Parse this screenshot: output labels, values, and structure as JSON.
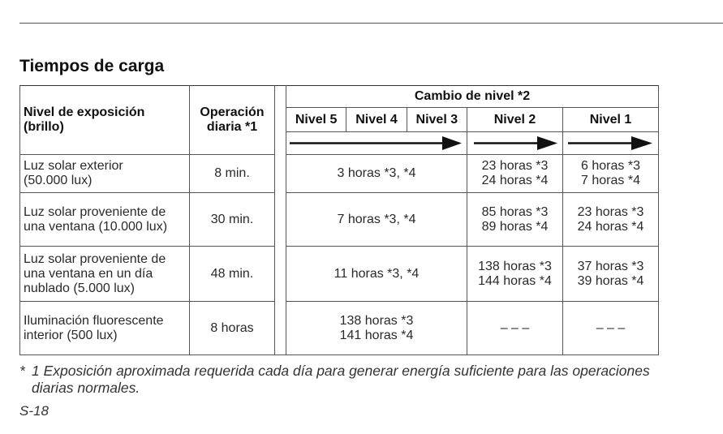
{
  "heading": "Tiempos de carga",
  "headers": {
    "exposure_level": "Nivel de exposición (brillo)",
    "daily_operation": "Operación diaria *1",
    "level_change": "Cambio de nivel *2",
    "levels": [
      "Nivel 5",
      "Nivel 4",
      "Nivel 3",
      "Nivel 2",
      "Nivel 1"
    ]
  },
  "rows": [
    {
      "exposure": "Luz solar exterior (50.000 lux)",
      "daily": "8 min.",
      "levels_5_3": [
        "3 horas *3, *4"
      ],
      "level_2": [
        "23 horas *3",
        "24 horas *4"
      ],
      "level_1": [
        "6 horas *3",
        "7 horas *4"
      ]
    },
    {
      "exposure": "Luz solar proveniente de una ventana (10.000 lux)",
      "daily": "30 min.",
      "levels_5_3": [
        "7 horas *3, *4"
      ],
      "level_2": [
        "85 horas *3",
        "89 horas *4"
      ],
      "level_1": [
        "23 horas *3",
        "24 horas *4"
      ]
    },
    {
      "exposure": "Luz solar proveniente de una ventana en un día nublado (5.000 lux)",
      "daily": "48 min.",
      "levels_5_3": [
        "11 horas *3, *4"
      ],
      "level_2": [
        "138 horas *3",
        "144 horas *4"
      ],
      "level_1": [
        "37 horas *3",
        "39 horas *4"
      ]
    },
    {
      "exposure": "Iluminación fluorescente interior (500 lux)",
      "daily": "8 horas",
      "levels_5_3": [
        "138 horas *3",
        "141 horas *4"
      ],
      "level_2": [
        "– – –"
      ],
      "level_1": [
        "– – –"
      ]
    }
  ],
  "footnote": {
    "mark": "*",
    "text": "1 Exposición aproximada requerida cada día para generar energía suficiente para las operaciones diarias normales."
  },
  "page_number": "S-18"
}
